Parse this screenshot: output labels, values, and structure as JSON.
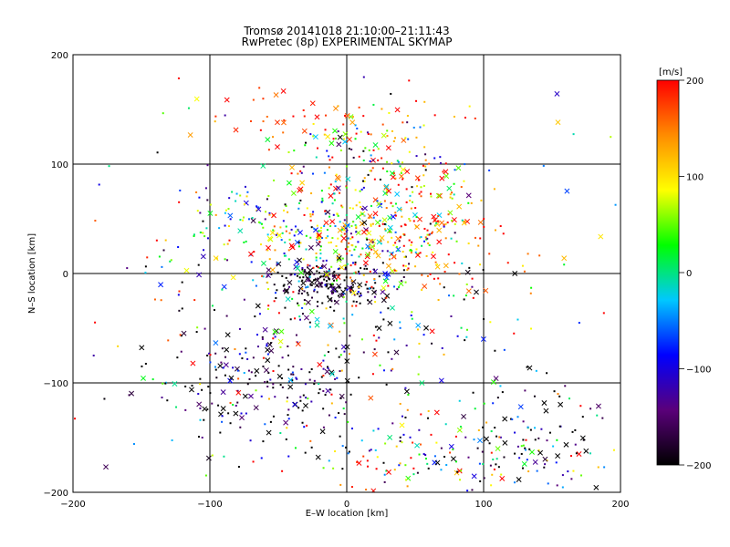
{
  "chart_data": {
    "type": "scatter",
    "title": "Tromsø 20141018 21:10:00–21:11:43",
    "subtitle": "RwPretec (8p) EXPERIMENTAL SKYMAP",
    "xlabel": "E–W location [km]",
    "ylabel": "N–S location [km]",
    "xlim": [
      -200,
      200
    ],
    "ylim": [
      -200,
      200
    ],
    "xticks": [
      -200,
      -100,
      0,
      100,
      200
    ],
    "yticks": [
      -200,
      -100,
      0,
      100,
      200
    ],
    "grid": true,
    "marker_types": [
      "dot",
      "x"
    ],
    "colorbar": {
      "label": "[m/s]",
      "range": [
        -200,
        200
      ],
      "ticks": [
        200,
        100,
        0,
        -100,
        -200
      ],
      "colormap": [
        "#000000",
        "#5a007a",
        "#0000ff",
        "#00c8ff",
        "#00ff00",
        "#ffff00",
        "#ff8c00",
        "#ff0000"
      ],
      "placement": "right"
    },
    "clusters": [
      {
        "center": [
          -15,
          -10
        ],
        "spread": [
          20,
          10
        ],
        "count": 180,
        "velocity": -190,
        "velocity_spread": 40
      },
      {
        "center": [
          -25,
          40
        ],
        "spread": [
          45,
          25
        ],
        "count": 260,
        "velocity": 20,
        "velocity_spread": 90
      },
      {
        "center": [
          40,
          40
        ],
        "spread": [
          35,
          30
        ],
        "count": 220,
        "velocity": 150,
        "velocity_spread": 70
      },
      {
        "center": [
          25,
          110
        ],
        "spread": [
          30,
          25
        ],
        "count": 120,
        "velocity": 60,
        "velocity_spread": 150
      },
      {
        "center": [
          -60,
          -100
        ],
        "spread": [
          40,
          30
        ],
        "count": 200,
        "velocity": -180,
        "velocity_spread": 60
      },
      {
        "center": [
          60,
          -170
        ],
        "spread": [
          60,
          20
        ],
        "count": 140,
        "velocity": 30,
        "velocity_spread": 150
      },
      {
        "center": [
          140,
          -160
        ],
        "spread": [
          35,
          30
        ],
        "count": 90,
        "velocity": -170,
        "velocity_spread": 80
      },
      {
        "center": [
          0,
          -20
        ],
        "spread": [
          70,
          60
        ],
        "count": 320,
        "velocity": 0,
        "velocity_spread": 160
      },
      {
        "center": [
          -40,
          140
        ],
        "spread": [
          40,
          15
        ],
        "count": 40,
        "velocity": 180,
        "velocity_spread": 30
      },
      {
        "center": [
          0,
          0
        ],
        "spread": [
          160,
          160
        ],
        "count": 170,
        "velocity": 0,
        "velocity_spread": 180
      }
    ]
  }
}
